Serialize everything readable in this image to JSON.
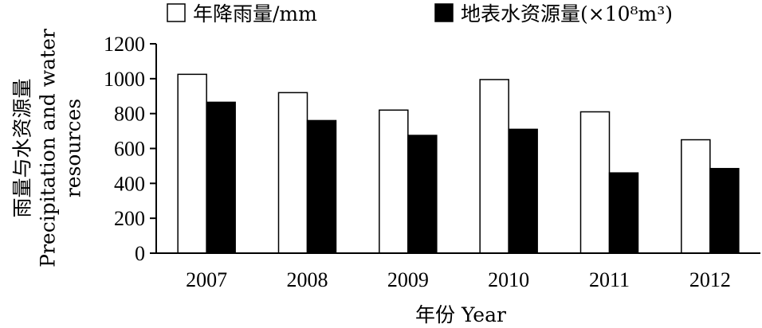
{
  "chart_data": {
    "type": "bar",
    "categories": [
      "2007",
      "2008",
      "2009",
      "2010",
      "2011",
      "2012"
    ],
    "series": [
      {
        "name": "年降雨量/mm",
        "color": "#ffffff",
        "values": [
          1025,
          920,
          820,
          995,
          810,
          650
        ]
      },
      {
        "name": "地表水资源量(×10⁸m³)",
        "color": "#000000",
        "values": [
          865,
          760,
          675,
          710,
          460,
          485
        ]
      }
    ],
    "xlabel": "年份 Year",
    "ylabel_lines": [
      "雨量与水资源量",
      "Precipitation and water",
      "resources"
    ],
    "yticks": [
      0,
      200,
      400,
      600,
      800,
      1000,
      1200
    ],
    "ylim": [
      0,
      1200
    ],
    "legend_position": "top",
    "grid": false
  }
}
